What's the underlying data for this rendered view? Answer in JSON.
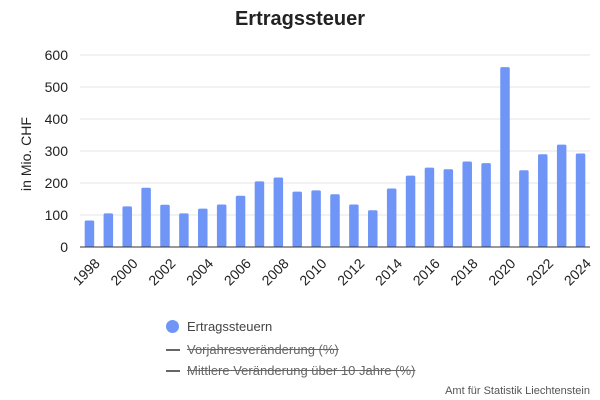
{
  "chart_data": {
    "type": "bar",
    "title": "Ertragssteuer",
    "ylabel": "in Mio. CHF",
    "xlabel": "",
    "ylim": [
      0,
      600
    ],
    "yticks": [
      0,
      100,
      200,
      300,
      400,
      500,
      600
    ],
    "x": [
      1998,
      1999,
      2000,
      2001,
      2002,
      2003,
      2004,
      2005,
      2006,
      2007,
      2008,
      2009,
      2010,
      2011,
      2012,
      2013,
      2014,
      2015,
      2016,
      2017,
      2018,
      2019,
      2020,
      2021,
      2022,
      2023,
      2024
    ],
    "xtick_labels": [
      "1998",
      "2000",
      "2002",
      "2004",
      "2006",
      "2008",
      "2010",
      "2012",
      "2014",
      "2016",
      "2018",
      "2020",
      "2022",
      "2024"
    ],
    "series": [
      {
        "name": "Ertragssteuern",
        "color": "#6f95f7",
        "values": [
          83,
          105,
          127,
          185,
          132,
          105,
          120,
          133,
          160,
          205,
          217,
          173,
          177,
          165,
          133,
          115,
          183,
          223,
          248,
          243,
          267,
          262,
          562,
          240,
          290,
          320,
          292
        ]
      }
    ],
    "legend": {
      "placement": "bottom",
      "items": [
        {
          "label": "Ertragssteuern",
          "marker": "dot",
          "color": "#6f95f7",
          "hidden": false
        },
        {
          "label": "Vorjahresveränderung (%)",
          "marker": "line",
          "color": "#666666",
          "hidden": true
        },
        {
          "label": "Mittlere Veränderung über 10 Jahre (%)",
          "marker": "line",
          "color": "#666666",
          "hidden": true
        }
      ]
    },
    "grid": true
  },
  "credit": "Amt für Statistik Liechtenstein"
}
